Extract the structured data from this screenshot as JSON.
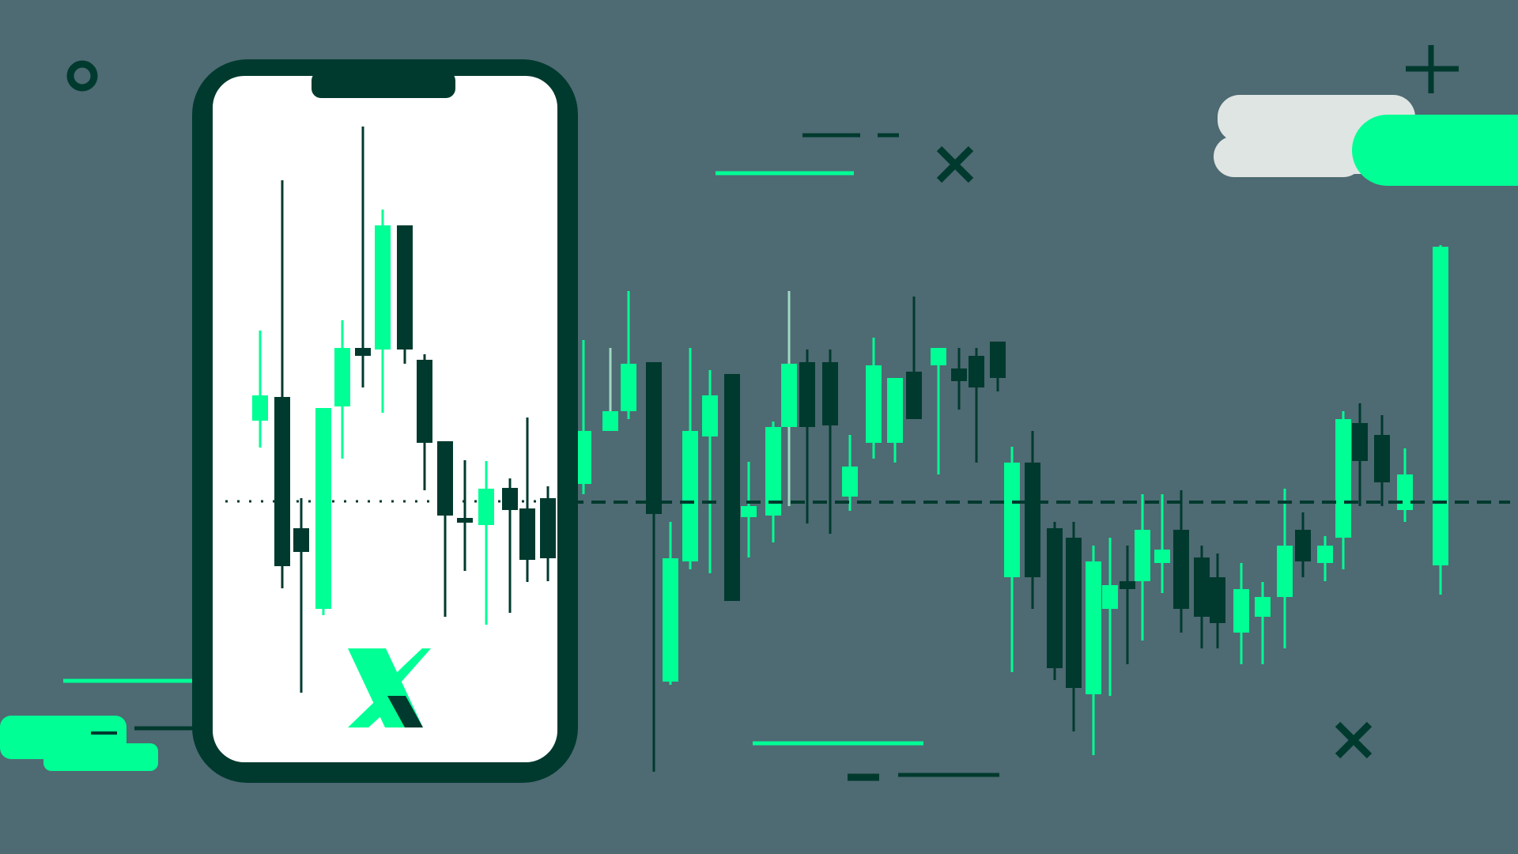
{
  "colors": {
    "background": "#4e6a73",
    "accent_green": "#00ff95",
    "dark_green": "#003a2e",
    "phone_screen": "#ffffff",
    "cloud_light": "#dfe5e2",
    "pale_wick": "#9fd9c0"
  },
  "logo": {
    "icon": "x-logo-icon"
  },
  "decorations": [
    "circle-marker-icon",
    "plus-marker-icon",
    "x-marker-icon"
  ]
}
